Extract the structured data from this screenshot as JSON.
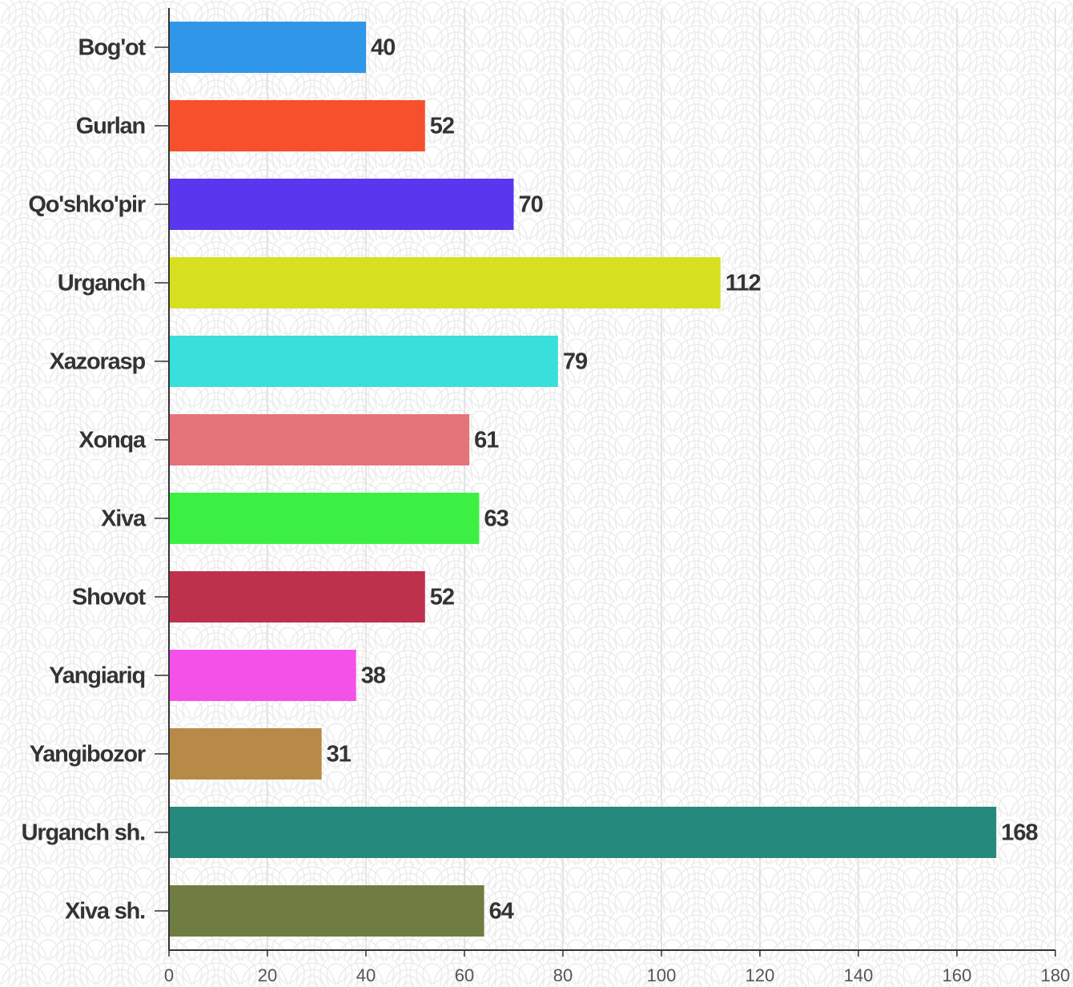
{
  "chart_data": {
    "type": "bar",
    "orientation": "horizontal",
    "categories": [
      "Bog'ot",
      "Gurlan",
      "Qo'shko'pir",
      "Urganch",
      "Xazorasp",
      "Xonqa",
      "Xiva",
      "Shovot",
      "Yangiariq",
      "Yangibozor",
      "Urganch sh.",
      "Xiva sh."
    ],
    "values": [
      40,
      52,
      70,
      112,
      79,
      61,
      63,
      52,
      38,
      31,
      168,
      64
    ],
    "colors": [
      "#3096e8",
      "#f6502c",
      "#5a36ef",
      "#d6e021",
      "#38dfdb",
      "#e5737a",
      "#3cf043",
      "#bd314c",
      "#f451e8",
      "#b88a47",
      "#25897b",
      "#6f7d42"
    ],
    "xlim": [
      0,
      180
    ],
    "xticks": [
      0,
      20,
      40,
      60,
      80,
      100,
      120,
      140,
      160,
      180
    ],
    "grid": true
  }
}
